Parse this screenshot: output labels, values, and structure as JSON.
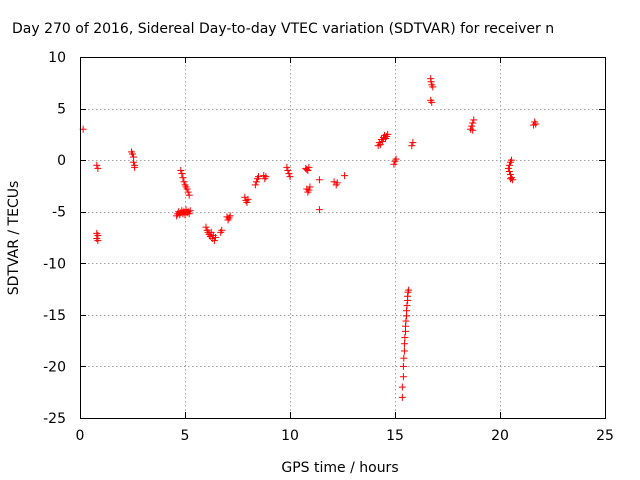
{
  "chart_data": {
    "type": "scatter",
    "title": "Day 270 of 2016, Sidereal Day-to-day VTEC variation (SDTVAR) for receiver n",
    "xlabel": "GPS time / hours",
    "ylabel": "SDTVAR / TECUs",
    "xlim": [
      0,
      25
    ],
    "ylim": [
      -25,
      10
    ],
    "xticks": [
      "0",
      "5",
      "10",
      "15",
      "20",
      "25"
    ],
    "yticks": [
      "10",
      "5",
      "0",
      "-5",
      "-10",
      "-15",
      "-20",
      "-25"
    ],
    "grid": true,
    "marker": "plus",
    "color": "#ff0000",
    "series": [
      {
        "name": "SDTVAR",
        "x": [
          0.15,
          0.8,
          0.85,
          0.8,
          0.85,
          0.8,
          0.85,
          2.45,
          2.5,
          2.55,
          2.55,
          2.6,
          2.6,
          4.6,
          4.65,
          4.7,
          4.75,
          4.8,
          4.85,
          4.9,
          4.95,
          5.0,
          5.05,
          5.1,
          5.15,
          5.2,
          5.25,
          4.8,
          4.85,
          4.9,
          4.95,
          5.0,
          5.05,
          5.1,
          5.15,
          5.2,
          6.0,
          6.05,
          6.1,
          6.15,
          6.2,
          6.25,
          6.3,
          6.35,
          6.4,
          6.45,
          6.7,
          6.75,
          7.0,
          7.05,
          7.1,
          7.15,
          7.85,
          7.9,
          7.95,
          8.0,
          8.35,
          8.4,
          8.45,
          8.5,
          8.75,
          8.8,
          8.85,
          9.85,
          9.9,
          9.95,
          10.0,
          10.75,
          10.8,
          10.85,
          10.9,
          10.95,
          10.9,
          10.85,
          10.8,
          11.4,
          11.4,
          12.1,
          12.2,
          12.25,
          12.6,
          14.2,
          14.25,
          14.3,
          14.35,
          14.4,
          14.45,
          14.5,
          14.55,
          14.6,
          14.65,
          14.95,
          15.0,
          15.05,
          15.35,
          15.35,
          15.4,
          15.4,
          15.42,
          15.45,
          15.45,
          15.47,
          15.5,
          15.5,
          15.52,
          15.55,
          15.55,
          15.57,
          15.6,
          15.6,
          15.62,
          15.65,
          15.8,
          15.85,
          16.7,
          16.72,
          16.75,
          16.8,
          16.7,
          16.75,
          18.6,
          18.65,
          18.7,
          18.75,
          18.7,
          20.4,
          20.45,
          20.5,
          20.55,
          20.6,
          20.5,
          20.55,
          20.45,
          20.5,
          21.6,
          21.65,
          21.7
        ],
        "y": [
          3.0,
          -0.5,
          -0.8,
          -7.1,
          -7.3,
          -7.6,
          -7.8,
          0.8,
          0.6,
          0.3,
          -0.2,
          -0.5,
          -0.7,
          -5.4,
          -5.2,
          -5.0,
          -5.3,
          -5.1,
          -4.9,
          -5.2,
          -5.0,
          -5.3,
          -4.8,
          -5.1,
          -5.0,
          -5.2,
          -4.9,
          -1.0,
          -1.3,
          -1.7,
          -2.1,
          -2.4,
          -2.6,
          -2.8,
          -3.1,
          -3.4,
          -6.5,
          -6.8,
          -7.0,
          -7.2,
          -7.4,
          -7.0,
          -7.6,
          -7.3,
          -7.8,
          -7.5,
          -7.0,
          -6.8,
          -5.5,
          -5.8,
          -5.6,
          -5.4,
          -3.6,
          -3.9,
          -4.1,
          -3.8,
          -2.4,
          -2.1,
          -1.8,
          -1.6,
          -1.5,
          -1.8,
          -1.6,
          -0.7,
          -1.0,
          -1.3,
          -1.6,
          -0.8,
          -0.9,
          -1.0,
          -0.7,
          -2.6,
          -2.9,
          -3.1,
          -2.8,
          -1.9,
          -4.8,
          -2.1,
          -2.4,
          -2.2,
          -1.5,
          1.4,
          1.7,
          1.5,
          2.0,
          1.8,
          2.2,
          2.4,
          2.1,
          2.3,
          2.5,
          -0.4,
          -0.1,
          0.1,
          -23.0,
          -22.0,
          -21.0,
          -20.0,
          -19.2,
          -18.5,
          -17.8,
          -17.2,
          -16.6,
          -16.1,
          -15.6,
          -15.1,
          -14.6,
          -14.1,
          -13.6,
          -13.2,
          -12.8,
          -12.6,
          1.4,
          1.7,
          7.9,
          7.6,
          7.3,
          7.1,
          5.8,
          5.6,
          3.0,
          3.3,
          3.6,
          3.9,
          2.9,
          -0.8,
          -1.1,
          -1.4,
          -1.7,
          -1.9,
          -0.2,
          0.0,
          -0.5,
          -1.8,
          3.4,
          3.7,
          3.5
        ]
      }
    ]
  }
}
